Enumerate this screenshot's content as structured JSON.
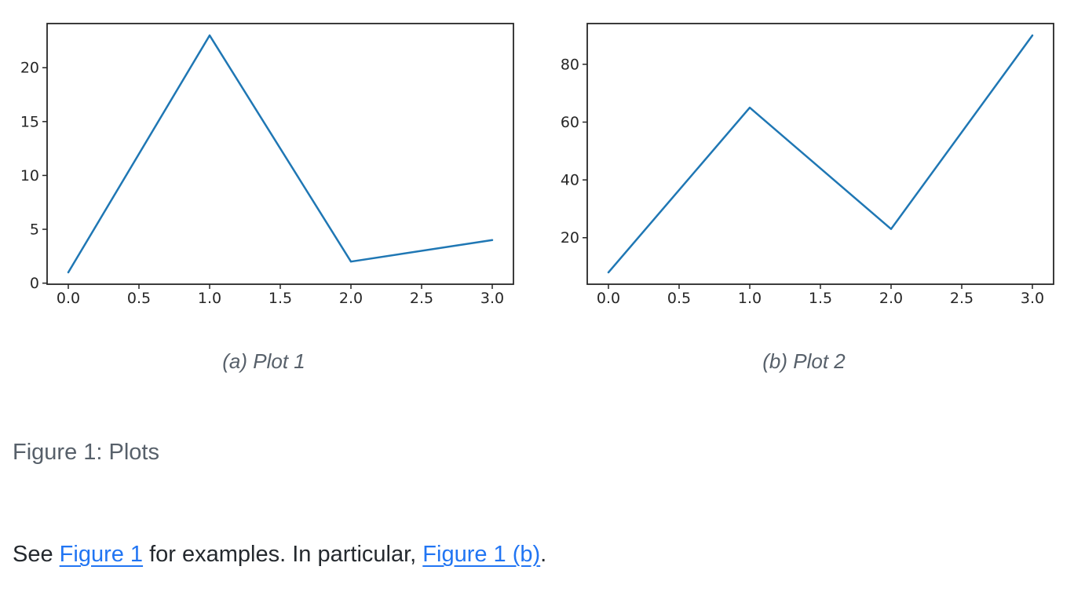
{
  "figure": {
    "caption": "Figure 1: Plots",
    "subfigures": [
      {
        "caption": "(a) Plot 1"
      },
      {
        "caption": "(b) Plot 2"
      }
    ]
  },
  "paragraph": {
    "segments": [
      {
        "type": "text",
        "text": "See "
      },
      {
        "type": "link",
        "text": "Figure 1"
      },
      {
        "type": "text",
        "text": " for examples. In particular, "
      },
      {
        "type": "link",
        "text": "Figure 1 (b)"
      },
      {
        "type": "text",
        "text": "."
      }
    ]
  },
  "colors": {
    "line": "#1f77b4",
    "axis": "#262626",
    "link": "#2175f3",
    "caption_gray": "#57606a",
    "body_text": "#24292e",
    "background": "#ffffff"
  },
  "chart_data": [
    {
      "type": "line",
      "title": "(a) Plot 1",
      "x": [
        0,
        1,
        2,
        3
      ],
      "y": [
        1,
        23,
        2,
        4
      ],
      "xlabel": "",
      "ylabel": "",
      "xlim": [
        -0.15,
        3.15
      ],
      "ylim": [
        -0.1,
        24.1
      ],
      "xticks": [
        0,
        0.5,
        1,
        1.5,
        2,
        2.5,
        3
      ],
      "xtick_labels": [
        "0.0",
        "0.5",
        "1.0",
        "1.5",
        "2.0",
        "2.5",
        "3.0"
      ],
      "yticks": [
        0,
        5,
        10,
        15,
        20
      ],
      "ytick_labels": [
        "0",
        "5",
        "10",
        "15",
        "20"
      ],
      "grid": false,
      "legend": null,
      "line_color": "#1f77b4"
    },
    {
      "type": "line",
      "title": "(b) Plot 2",
      "x": [
        0,
        1,
        2,
        3
      ],
      "y": [
        8,
        65,
        23,
        90
      ],
      "xlabel": "",
      "ylabel": "",
      "xlim": [
        -0.15,
        3.15
      ],
      "ylim": [
        3.9,
        94.1
      ],
      "xticks": [
        0,
        0.5,
        1,
        1.5,
        2,
        2.5,
        3
      ],
      "xtick_labels": [
        "0.0",
        "0.5",
        "1.0",
        "1.5",
        "2.0",
        "2.5",
        "3.0"
      ],
      "yticks": [
        20,
        40,
        60,
        80
      ],
      "ytick_labels": [
        "20",
        "40",
        "60",
        "80"
      ],
      "grid": false,
      "legend": null,
      "line_color": "#1f77b4"
    }
  ]
}
